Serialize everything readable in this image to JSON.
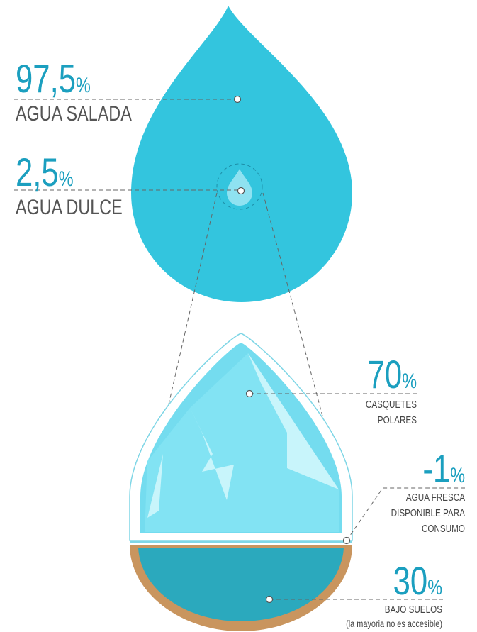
{
  "stats": [
    {
      "value": "97,5",
      "unit": "%",
      "label": [
        "AGUA SALADA"
      ]
    },
    {
      "value": "2,5",
      "unit": "%",
      "label": [
        "AGUA DULCE"
      ]
    },
    {
      "value": "70",
      "unit": "%",
      "label": [
        "CASQUETES",
        "POLARES"
      ]
    },
    {
      "value": "-1",
      "unit": "%",
      "label": [
        "AGUA FRESCA",
        "DISPONIBLE PARA",
        "CONSUMO"
      ]
    },
    {
      "value": "30",
      "unit": "%",
      "label": [
        "BAJO SUELOS"
      ],
      "note": "(la mayoria no es accesible)"
    }
  ]
}
